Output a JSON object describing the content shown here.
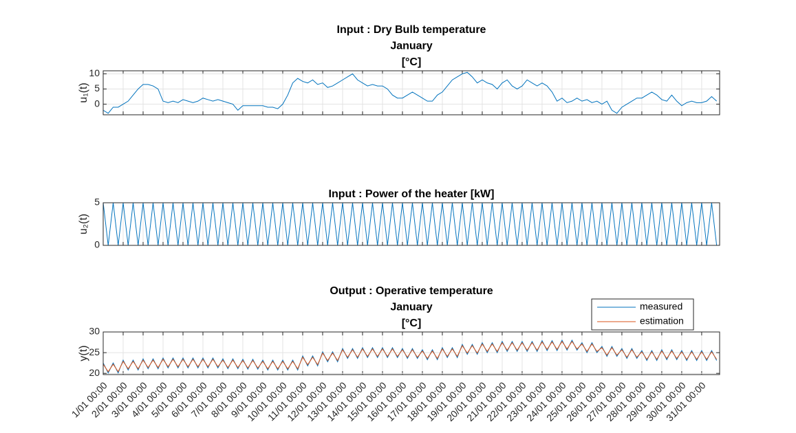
{
  "chart_data": [
    {
      "type": "line",
      "title": [
        "Input : Dry Bulb temperature",
        "January",
        "[°C]"
      ],
      "y_label": "u₁(t)",
      "x": [
        1,
        1.25,
        1.5,
        1.75,
        2,
        2.25,
        2.5,
        2.75,
        3,
        3.25,
        3.5,
        3.75,
        4,
        4.25,
        4.5,
        4.75,
        5,
        5.25,
        5.5,
        5.75,
        6,
        6.25,
        6.5,
        6.75,
        7,
        7.25,
        7.5,
        7.75,
        8,
        8.25,
        8.5,
        8.75,
        9,
        9.25,
        9.5,
        9.75,
        10,
        10.25,
        10.5,
        10.75,
        11,
        11.25,
        11.5,
        11.75,
        12,
        12.25,
        12.5,
        12.75,
        13,
        13.25,
        13.5,
        13.75,
        14,
        14.25,
        14.5,
        14.75,
        15,
        15.25,
        15.5,
        15.75,
        16,
        16.25,
        16.5,
        16.75,
        17,
        17.25,
        17.5,
        17.75,
        18,
        18.25,
        18.5,
        18.75,
        19,
        19.25,
        19.5,
        19.75,
        20,
        20.25,
        20.5,
        20.75,
        21,
        21.25,
        21.5,
        21.75,
        22,
        22.25,
        22.5,
        22.75,
        23,
        23.25,
        23.5,
        23.75,
        24,
        24.25,
        24.5,
        24.75,
        25,
        25.25,
        25.5,
        25.75,
        26,
        26.25,
        26.5,
        26.75,
        27,
        27.25,
        27.5,
        27.75,
        28,
        28.25,
        28.5,
        28.75,
        29,
        29.25,
        29.5,
        29.75,
        30,
        30.25,
        30.5,
        30.75,
        31,
        31.25,
        31.5,
        31.75
      ],
      "values": [
        -2,
        -3,
        -1,
        -1,
        0,
        1,
        3,
        5,
        6.5,
        6.5,
        6,
        5,
        1,
        0.5,
        1,
        0.5,
        1.5,
        1,
        0.5,
        1,
        2,
        1.5,
        1,
        1.5,
        1,
        0.5,
        0,
        -2,
        -0.5,
        -0.5,
        -0.5,
        -0.5,
        -0.5,
        -1,
        -1,
        -1.5,
        0,
        3,
        7,
        8.5,
        7.5,
        7,
        8,
        6.5,
        7,
        5.5,
        6,
        7,
        8,
        9,
        10,
        8,
        7,
        6,
        6.5,
        6,
        6,
        5,
        3,
        2,
        2,
        3,
        4,
        3,
        2,
        1,
        1,
        3,
        4,
        6,
        8,
        9,
        10,
        10.5,
        9,
        7,
        8,
        7,
        6.5,
        5,
        7,
        8,
        6,
        5,
        6,
        8,
        7,
        6,
        7,
        6,
        4,
        1,
        2,
        0.5,
        1,
        2,
        1,
        1.5,
        0.5,
        1,
        0,
        1,
        -2,
        -3,
        -1,
        0,
        1,
        2,
        2,
        3,
        4,
        3,
        1.5,
        1,
        3,
        1,
        -0.5,
        0.5,
        1,
        0.5,
        0.5,
        1,
        2.5,
        1
      ],
      "color": "#0072BD",
      "xlim": [
        1,
        31.9
      ],
      "xticks": [
        1,
        2,
        3,
        4,
        5,
        6,
        7,
        8,
        9,
        10,
        11,
        12,
        13,
        14,
        15,
        16,
        17,
        18,
        19,
        20,
        21,
        22,
        23,
        24,
        25,
        26,
        27,
        28,
        29,
        30,
        31
      ],
      "xticklabels": false,
      "ylim": [
        -3.5,
        11
      ],
      "yticks": [
        0,
        5,
        10
      ],
      "grid": true
    },
    {
      "type": "line",
      "title": [
        "Input : Power of the heater [kW]"
      ],
      "y_label": "u₂(t)",
      "x": [
        1,
        1.25,
        1.5,
        1.75,
        2,
        2.25,
        2.5,
        2.75,
        3,
        3.25,
        3.5,
        3.75,
        4,
        4.25,
        4.5,
        4.75,
        5,
        5.25,
        5.5,
        5.75,
        6,
        6.25,
        6.5,
        6.75,
        7,
        7.25,
        7.5,
        7.75,
        8,
        8.25,
        8.5,
        8.75,
        9,
        9.25,
        9.5,
        9.75,
        10,
        10.25,
        10.5,
        10.75,
        11,
        11.25,
        11.5,
        11.75,
        12,
        12.25,
        12.5,
        12.75,
        13,
        13.25,
        13.5,
        13.75,
        14,
        14.25,
        14.5,
        14.75,
        15,
        15.25,
        15.5,
        15.75,
        16,
        16.25,
        16.5,
        16.75,
        17,
        17.25,
        17.5,
        17.75,
        18,
        18.25,
        18.5,
        18.75,
        19,
        19.25,
        19.5,
        19.75,
        20,
        20.25,
        20.5,
        20.75,
        21,
        21.25,
        21.5,
        21.75,
        22,
        22.25,
        22.5,
        22.75,
        23,
        23.25,
        23.5,
        23.75,
        24,
        24.25,
        24.5,
        24.75,
        25,
        25.25,
        25.5,
        25.75,
        26,
        26.25,
        26.5,
        26.75,
        27,
        27.25,
        27.5,
        27.75,
        28,
        28.25,
        28.5,
        28.75,
        29,
        29.25,
        29.5,
        29.75,
        30,
        30.25,
        30.5,
        30.75,
        31,
        31.25,
        31.5,
        31.75
      ],
      "values": [
        5,
        0,
        5,
        0,
        5,
        0,
        5,
        0,
        5,
        0,
        5,
        0,
        5,
        0,
        5,
        0,
        5,
        0,
        5,
        0,
        5,
        0,
        5,
        0,
        5,
        0,
        5,
        0,
        5,
        0,
        5,
        0,
        5,
        0,
        5,
        0,
        5,
        0,
        5,
        0,
        5,
        0,
        5,
        0,
        5,
        0,
        5,
        0,
        5,
        0,
        5,
        0,
        5,
        0,
        5,
        0,
        5,
        0,
        5,
        0,
        5,
        0,
        5,
        0,
        5,
        0,
        5,
        0,
        5,
        0,
        5,
        0,
        5,
        0,
        5,
        0,
        5,
        0,
        5,
        0,
        5,
        0,
        5,
        0,
        5,
        0,
        5,
        0,
        5,
        0,
        5,
        0,
        5,
        0,
        5,
        0,
        5,
        0,
        5,
        0,
        5,
        0,
        5,
        0,
        5,
        0,
        5,
        0,
        5,
        0,
        5,
        0,
        5,
        0,
        5,
        0,
        5,
        0,
        5,
        0,
        5,
        0,
        5,
        0
      ],
      "color": "#0072BD",
      "xlim": [
        1,
        31.9
      ],
      "xticks": [
        1,
        2,
        3,
        4,
        5,
        6,
        7,
        8,
        9,
        10,
        11,
        12,
        13,
        14,
        15,
        16,
        17,
        18,
        19,
        20,
        21,
        22,
        23,
        24,
        25,
        26,
        27,
        28,
        29,
        30,
        31
      ],
      "xticklabels": false,
      "ylim": [
        0,
        5
      ],
      "yticks": [
        0,
        5
      ],
      "grid": true
    },
    {
      "type": "line",
      "title": [
        "Output :  Operative temperature",
        "January",
        "[°C]"
      ],
      "y_label": "y(t)",
      "x": [
        1,
        1.25,
        1.5,
        1.75,
        2,
        2.25,
        2.5,
        2.75,
        3,
        3.25,
        3.5,
        3.75,
        4,
        4.25,
        4.5,
        4.75,
        5,
        5.25,
        5.5,
        5.75,
        6,
        6.25,
        6.5,
        6.75,
        7,
        7.25,
        7.5,
        7.75,
        8,
        8.25,
        8.5,
        8.75,
        9,
        9.25,
        9.5,
        9.75,
        10,
        10.25,
        10.5,
        10.75,
        11,
        11.25,
        11.5,
        11.75,
        12,
        12.25,
        12.5,
        12.75,
        13,
        13.25,
        13.5,
        13.75,
        14,
        14.25,
        14.5,
        14.75,
        15,
        15.25,
        15.5,
        15.75,
        16,
        16.25,
        16.5,
        16.75,
        17,
        17.25,
        17.5,
        17.75,
        18,
        18.25,
        18.5,
        18.75,
        19,
        19.25,
        19.5,
        19.75,
        20,
        20.25,
        20.5,
        20.75,
        21,
        21.25,
        21.5,
        21.75,
        22,
        22.25,
        22.5,
        22.75,
        23,
        23.25,
        23.5,
        23.75,
        24,
        24.25,
        24.5,
        24.75,
        25,
        25.25,
        25.5,
        25.75,
        26,
        26.25,
        26.5,
        26.75,
        27,
        27.25,
        27.5,
        27.75,
        28,
        28.25,
        28.5,
        28.75,
        29,
        29.25,
        29.5,
        29.75,
        30,
        30.25,
        30.5,
        30.75,
        31,
        31.25,
        31.5,
        31.75
      ],
      "series": [
        {
          "name": "measured",
          "color": "#0072BD",
          "values": [
            22.5,
            20.1,
            22.5,
            20.1,
            23.2,
            20.8,
            23.2,
            20.8,
            23.5,
            21.1,
            23.5,
            21.1,
            23.7,
            21.3,
            23.7,
            21.3,
            23.7,
            21.3,
            23.7,
            21.3,
            23.7,
            21.3,
            23.7,
            21.3,
            23.5,
            21.1,
            23.5,
            21.1,
            23.4,
            21.0,
            23.4,
            21.0,
            23.2,
            20.8,
            23.2,
            20.8,
            23.2,
            20.8,
            23.2,
            20.8,
            24.2,
            21.8,
            24.2,
            21.8,
            25.2,
            22.8,
            25.2,
            22.8,
            26.0,
            23.6,
            26.0,
            23.6,
            26.2,
            23.8,
            26.2,
            23.8,
            26.2,
            23.8,
            26.2,
            23.8,
            26.0,
            23.6,
            26.0,
            23.6,
            25.7,
            23.3,
            25.7,
            23.3,
            26.2,
            23.8,
            26.2,
            23.8,
            27.0,
            24.6,
            27.0,
            24.6,
            27.4,
            25.0,
            27.4,
            25.0,
            27.7,
            25.3,
            27.7,
            25.3,
            27.7,
            25.3,
            27.7,
            25.3,
            27.9,
            25.5,
            27.9,
            25.5,
            28.0,
            25.6,
            28.0,
            25.6,
            27.4,
            25.0,
            27.4,
            25.0,
            26.5,
            24.1,
            26.5,
            24.1,
            26.0,
            23.6,
            26.0,
            23.6,
            25.5,
            23.1,
            25.5,
            23.1,
            25.7,
            23.3,
            25.7,
            23.3,
            25.5,
            23.1,
            25.5,
            23.1,
            25.5,
            23.1,
            25.5,
            23.1
          ]
        },
        {
          "name": "estimation",
          "color": "#D95319",
          "values": [
            22.2,
            20.4,
            22.2,
            20.4,
            22.9,
            21.1,
            22.9,
            21.1,
            23.2,
            21.4,
            23.2,
            21.4,
            23.4,
            21.6,
            23.4,
            21.6,
            23.4,
            21.6,
            23.4,
            21.6,
            23.4,
            21.6,
            23.4,
            21.6,
            23.2,
            21.4,
            23.2,
            21.4,
            23.1,
            21.3,
            23.1,
            21.3,
            22.9,
            21.1,
            22.9,
            21.1,
            22.9,
            21.1,
            22.9,
            21.1,
            23.9,
            22.1,
            23.9,
            22.1,
            24.9,
            23.1,
            24.9,
            23.1,
            25.7,
            23.9,
            25.7,
            23.9,
            25.9,
            24.1,
            25.9,
            24.1,
            25.9,
            24.1,
            25.9,
            24.1,
            25.7,
            23.9,
            25.7,
            23.9,
            25.4,
            23.6,
            25.4,
            23.6,
            25.9,
            24.1,
            25.9,
            24.1,
            26.7,
            24.9,
            26.7,
            24.9,
            27.1,
            25.3,
            27.1,
            25.3,
            27.4,
            25.6,
            27.4,
            25.6,
            27.4,
            25.6,
            27.4,
            25.6,
            27.6,
            25.8,
            27.6,
            25.8,
            27.7,
            25.9,
            27.7,
            25.9,
            27.1,
            25.3,
            27.1,
            25.3,
            26.2,
            24.4,
            26.2,
            24.4,
            25.7,
            23.9,
            25.7,
            23.9,
            25.2,
            23.4,
            25.2,
            23.4,
            25.4,
            23.6,
            25.4,
            23.6,
            25.2,
            23.4,
            25.2,
            23.4,
            25.2,
            23.4,
            25.2,
            23.4
          ]
        }
      ],
      "xlim": [
        1,
        31.9
      ],
      "xticks": [
        {
          "value": 1,
          "label": "1/01 00:00"
        },
        {
          "value": 2,
          "label": "2/01 00:00"
        },
        {
          "value": 3,
          "label": "3/01 00:00"
        },
        {
          "value": 4,
          "label": "4/01 00:00"
        },
        {
          "value": 5,
          "label": "5/01 00:00"
        },
        {
          "value": 6,
          "label": "6/01 00:00"
        },
        {
          "value": 7,
          "label": "7/01 00:00"
        },
        {
          "value": 8,
          "label": "8/01 00:00"
        },
        {
          "value": 9,
          "label": "9/01 00:00"
        },
        {
          "value": 10,
          "label": "10/01 00:00"
        },
        {
          "value": 11,
          "label": "11/01 00:00"
        },
        {
          "value": 12,
          "label": "12/01 00:00"
        },
        {
          "value": 13,
          "label": "13/01 00:00"
        },
        {
          "value": 14,
          "label": "14/01 00:00"
        },
        {
          "value": 15,
          "label": "15/01 00:00"
        },
        {
          "value": 16,
          "label": "16/01 00:00"
        },
        {
          "value": 17,
          "label": "17/01 00:00"
        },
        {
          "value": 18,
          "label": "18/01 00:00"
        },
        {
          "value": 19,
          "label": "19/01 00:00"
        },
        {
          "value": 20,
          "label": "20/01 00:00"
        },
        {
          "value": 21,
          "label": "21/01 00:00"
        },
        {
          "value": 22,
          "label": "22/01 00:00"
        },
        {
          "value": 23,
          "label": "23/01 00:00"
        },
        {
          "value": 24,
          "label": "24/01 00:00"
        },
        {
          "value": 25,
          "label": "25/01 00:00"
        },
        {
          "value": 26,
          "label": "26/01 00:00"
        },
        {
          "value": 27,
          "label": "27/01 00:00"
        },
        {
          "value": 28,
          "label": "28/01 00:00"
        },
        {
          "value": 29,
          "label": "29/01 00:00"
        },
        {
          "value": 30,
          "label": "30/01 00:00"
        },
        {
          "value": 31,
          "label": "31/01 00:00"
        }
      ],
      "xticklabels": true,
      "ylim": [
        19.7,
        30
      ],
      "yticks": [
        20,
        25,
        30
      ],
      "grid": true,
      "legend": "northeast"
    }
  ]
}
